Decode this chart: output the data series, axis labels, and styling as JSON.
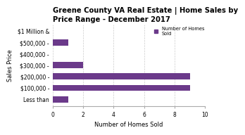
{
  "title": "Greene County VA Real Estate | Home Sales by\nPrice Range - December 2017",
  "categories": [
    "Less than",
    "$100,000 -",
    "$200,000 -",
    "$300,000 -",
    "$400,000 -",
    "$500,000 -",
    "$1 Million &"
  ],
  "values": [
    1,
    9,
    9,
    2,
    0,
    1,
    0
  ],
  "bar_color": "#6b3a8a",
  "xlabel": "Number of Homes Sold",
  "ylabel": "Sales Price",
  "xlim": [
    0,
    10
  ],
  "xticks": [
    0,
    2,
    4,
    6,
    8,
    10
  ],
  "legend_label": "Number of Homes\nSold",
  "title_fontsize": 7.2,
  "label_fontsize": 6.0,
  "tick_fontsize": 5.5,
  "background_color": "#ffffff",
  "grid_color": "#cccccc"
}
